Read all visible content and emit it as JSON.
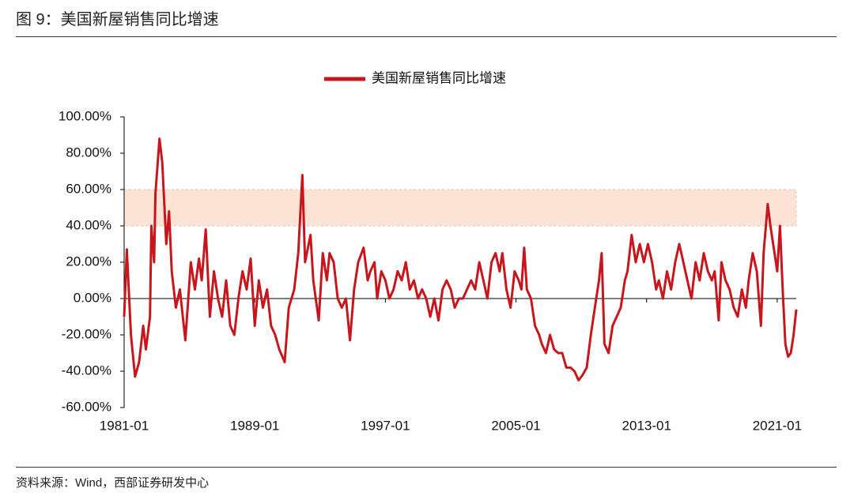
{
  "header": {
    "title": "图 9：美国新屋销售同比增速"
  },
  "chart_data": {
    "type": "line",
    "x": [
      "1981-01",
      "1981-03",
      "1981-06",
      "1981-09",
      "1981-12",
      "1982-03",
      "1982-05",
      "1982-08",
      "1982-09",
      "1982-11",
      "1982-12",
      "1983-03",
      "1983-05",
      "1983-08",
      "1983-10",
      "1983-12",
      "1984-03",
      "1984-06",
      "1984-10",
      "1985-02",
      "1985-05",
      "1985-08",
      "1985-10",
      "1986-01",
      "1986-04",
      "1986-07",
      "1986-10",
      "1987-01",
      "1987-04",
      "1987-07",
      "1987-10",
      "1988-01",
      "1988-04",
      "1988-07",
      "1988-10",
      "1989-01",
      "1989-04",
      "1989-07",
      "1989-10",
      "1990-01",
      "1990-04",
      "1990-07",
      "1990-11",
      "1991-02",
      "1991-06",
      "1991-09",
      "1991-12",
      "1992-02",
      "1992-06",
      "1992-08",
      "1992-12",
      "1993-03",
      "1993-06",
      "1993-08",
      "1993-11",
      "1994-02",
      "1994-05",
      "1994-08",
      "1994-11",
      "1995-02",
      "1995-05",
      "1995-09",
      "1995-12",
      "1996-02",
      "1996-05",
      "1996-07",
      "1996-10",
      "1997-01",
      "1997-04",
      "1997-07",
      "1997-10",
      "1998-01",
      "1998-04",
      "1998-07",
      "1998-10",
      "1999-01",
      "1999-04",
      "1999-07",
      "1999-10",
      "2000-01",
      "2000-04",
      "2000-07",
      "2000-10",
      "2001-01",
      "2001-04",
      "2001-07",
      "2001-10",
      "2002-01",
      "2002-04",
      "2002-07",
      "2002-10",
      "2003-01",
      "2003-04",
      "2003-07",
      "2003-10",
      "2004-01",
      "2004-03",
      "2004-06",
      "2004-09",
      "2004-12",
      "2005-03",
      "2005-05",
      "2005-07",
      "2005-09",
      "2005-12",
      "2006-03",
      "2006-06",
      "2006-08",
      "2006-11",
      "2007-02",
      "2007-05",
      "2007-08",
      "2007-11",
      "2008-02",
      "2008-05",
      "2008-08",
      "2008-11",
      "2009-02",
      "2009-05",
      "2009-08",
      "2009-11",
      "2010-02",
      "2010-04",
      "2010-06",
      "2010-09",
      "2010-12",
      "2011-03",
      "2011-06",
      "2011-09",
      "2011-11",
      "2012-02",
      "2012-05",
      "2012-08",
      "2012-11",
      "2013-02",
      "2013-05",
      "2013-08",
      "2013-10",
      "2014-01",
      "2014-04",
      "2014-07",
      "2014-10",
      "2015-01",
      "2015-04",
      "2015-07",
      "2015-10",
      "2016-01",
      "2016-04",
      "2016-07",
      "2016-10",
      "2017-01",
      "2017-03",
      "2017-06",
      "2017-08",
      "2017-11",
      "2018-02",
      "2018-05",
      "2018-08",
      "2018-11",
      "2019-02",
      "2019-04",
      "2019-07",
      "2019-10",
      "2020-01",
      "2020-03",
      "2020-06",
      "2020-08",
      "2020-11",
      "2021-01",
      "2021-03",
      "2021-05",
      "2021-07",
      "2021-09",
      "2021-11",
      "2022-01",
      "2022-03"
    ],
    "series": [
      {
        "name": "美国新屋销售同比增速",
        "color": "#c8161d",
        "values": [
          -10,
          27,
          -20,
          -43,
          -35,
          -15,
          -28,
          -10,
          40,
          20,
          58,
          88,
          75,
          30,
          48,
          15,
          -5,
          5,
          -23,
          20,
          5,
          22,
          10,
          38,
          -10,
          15,
          0,
          -10,
          10,
          -15,
          -20,
          0,
          15,
          5,
          22,
          -15,
          10,
          -5,
          5,
          -15,
          -20,
          -28,
          -35,
          -5,
          5,
          25,
          68,
          20,
          35,
          10,
          -12,
          25,
          10,
          25,
          20,
          0,
          -5,
          0,
          -23,
          5,
          20,
          28,
          10,
          15,
          20,
          0,
          15,
          10,
          0,
          5,
          15,
          10,
          20,
          5,
          10,
          0,
          5,
          0,
          -10,
          0,
          -12,
          5,
          10,
          5,
          -5,
          0,
          0,
          5,
          10,
          5,
          20,
          10,
          0,
          20,
          25,
          15,
          25,
          5,
          -5,
          15,
          10,
          5,
          28,
          5,
          0,
          -15,
          -20,
          -25,
          -30,
          -20,
          -28,
          -30,
          -30,
          -38,
          -38,
          -40,
          -45,
          -42,
          -38,
          -20,
          -5,
          10,
          25,
          -25,
          -30,
          -15,
          -10,
          -5,
          10,
          15,
          35,
          20,
          30,
          20,
          30,
          20,
          5,
          10,
          0,
          15,
          5,
          20,
          30,
          20,
          10,
          0,
          20,
          10,
          25,
          15,
          10,
          15,
          -12,
          20,
          10,
          5,
          -5,
          -10,
          5,
          -5,
          10,
          25,
          15,
          -15,
          25,
          52,
          40,
          25,
          15,
          40,
          5,
          -25,
          -32,
          -30,
          -20,
          -6
        ]
      }
    ],
    "xlim": [
      "1981-01",
      "2022-03"
    ],
    "xticks": [
      "1981-01",
      "1989-01",
      "1997-01",
      "2005-01",
      "2013-01",
      "2021-01"
    ],
    "ylim": [
      -60,
      100
    ],
    "yticks": [
      {
        "value": -60,
        "label": "-60.00%"
      },
      {
        "value": -40,
        "label": "-40.00%"
      },
      {
        "value": -20,
        "label": "-20.00%"
      },
      {
        "value": 0,
        "label": "0.00%"
      },
      {
        "value": 20,
        "label": "20.00%"
      },
      {
        "value": 40,
        "label": "40.00%"
      },
      {
        "value": 60,
        "label": "60.00%"
      },
      {
        "value": 80,
        "label": "80.00%"
      },
      {
        "value": 100,
        "label": "100.00%"
      }
    ],
    "highlight_band": {
      "range": [
        40,
        60
      ],
      "color": "#fbe3d6"
    },
    "legend": "top"
  },
  "footer": {
    "source": "资料来源：Wind，西部证券研发中心"
  }
}
